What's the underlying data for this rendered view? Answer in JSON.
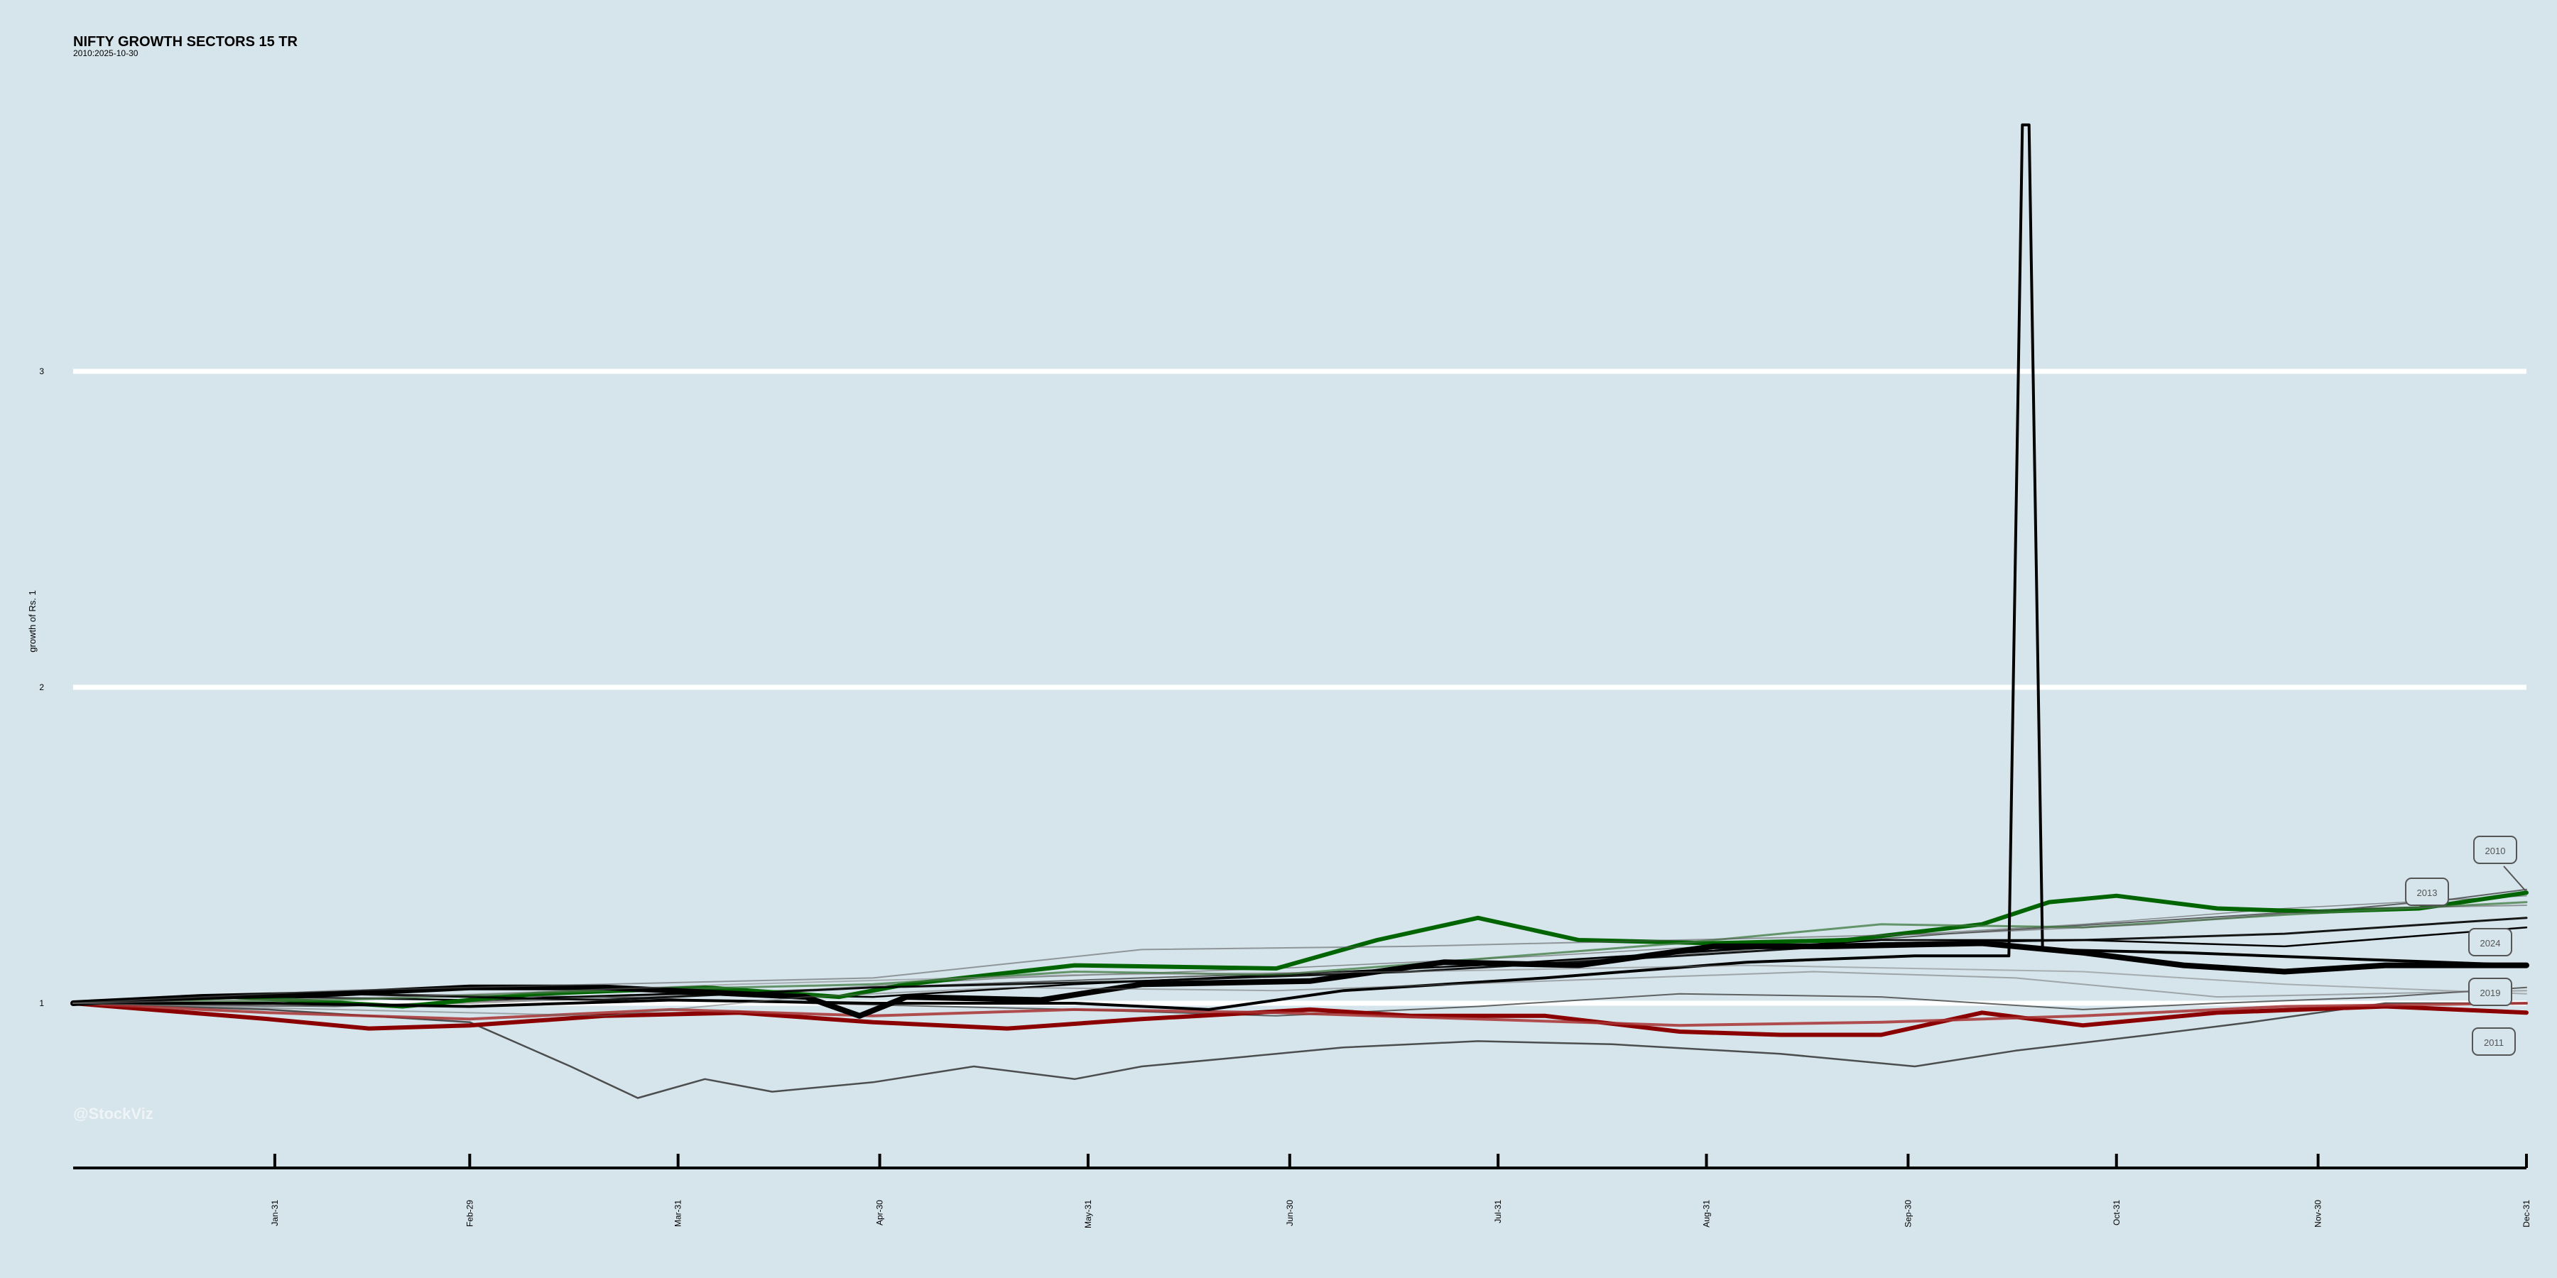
{
  "title": "NIFTY GROWTH SECTORS 15 TR",
  "subtitle": "2010:2025-10-30",
  "watermark": "@StockViz",
  "colors": {
    "background": "#d6e4eb",
    "gridline": "#ffffff",
    "green": "#006400",
    "red": "#8b0000",
    "black": "#000000"
  },
  "chart_data": {
    "type": "line",
    "title": "NIFTY GROWTH SECTORS 15 TR",
    "subtitle": "2010:2025-10-30",
    "ylabel": "growth of Rs. 1",
    "xlabel": "",
    "ylim": [
      0.5,
      3.8
    ],
    "y_ticks": [
      1,
      2,
      3
    ],
    "y_grid": true,
    "x_ticks": [
      "Jan-31",
      "Feb-29",
      "Mar-31",
      "Apr-30",
      "May-31",
      "Jun-30",
      "Jul-31",
      "Aug-31",
      "Sep-30",
      "Oct-31",
      "Nov-30",
      "Dec-31"
    ],
    "x_day_range": [
      1,
      366
    ],
    "annotations": [
      {
        "label": "2010",
        "y": 1.48
      },
      {
        "label": "2013",
        "y": 1.35
      },
      {
        "label": "2024",
        "y": 1.19
      },
      {
        "label": "2019",
        "y": 1.04
      },
      {
        "label": "2011",
        "y": 0.88
      }
    ],
    "series": [
      {
        "label": "2010",
        "color": "#404040",
        "width": 2,
        "opacity": 0.8,
        "points": [
          [
            1,
            1.0
          ],
          [
            40,
            1.03
          ],
          [
            80,
            1.02
          ],
          [
            120,
            1.05
          ],
          [
            160,
            1.08
          ],
          [
            190,
            1.1
          ],
          [
            220,
            1.13
          ],
          [
            250,
            1.17
          ],
          [
            280,
            1.22
          ],
          [
            310,
            1.26
          ],
          [
            340,
            1.3
          ],
          [
            355,
            1.33
          ],
          [
            366,
            1.36
          ]
        ]
      },
      {
        "label": "2013",
        "color": "#505050",
        "width": 1.5,
        "opacity": 0.6,
        "points": [
          [
            1,
            1.0
          ],
          [
            30,
            0.99
          ],
          [
            60,
            1.0
          ],
          [
            100,
            1.03
          ],
          [
            140,
            1.08
          ],
          [
            180,
            1.11
          ],
          [
            220,
            1.15
          ],
          [
            260,
            1.2
          ],
          [
            300,
            1.25
          ],
          [
            330,
            1.3
          ],
          [
            366,
            1.34
          ]
        ]
      },
      {
        "label": "2024",
        "color": "#000000",
        "width": 2.5,
        "opacity": 1,
        "points": [
          [
            1,
            1.0
          ],
          [
            30,
            1.02
          ],
          [
            60,
            1.01
          ],
          [
            90,
            1.03
          ],
          [
            120,
            1.02
          ],
          [
            150,
            1.06
          ],
          [
            180,
            1.09
          ],
          [
            210,
            1.12
          ],
          [
            240,
            1.16
          ],
          [
            270,
            1.2
          ],
          [
            300,
            1.2
          ],
          [
            330,
            1.18
          ],
          [
            366,
            1.24
          ]
        ]
      },
      {
        "label": "2019",
        "color": "#404040",
        "width": 2,
        "opacity": 0.8,
        "points": [
          [
            1,
            1.0
          ],
          [
            40,
            0.99
          ],
          [
            80,
            1.02
          ],
          [
            110,
            1.0
          ],
          [
            150,
            0.98
          ],
          [
            180,
            0.96
          ],
          [
            210,
            0.99
          ],
          [
            240,
            1.03
          ],
          [
            270,
            1.02
          ],
          [
            300,
            0.98
          ],
          [
            320,
            1.0
          ],
          [
            345,
            1.02
          ],
          [
            366,
            1.05
          ]
        ]
      },
      {
        "label": "2011",
        "color": "#333333",
        "width": 2.5,
        "opacity": 0.85,
        "points": [
          [
            1,
            1.0
          ],
          [
            30,
            0.98
          ],
          [
            60,
            0.94
          ],
          [
            75,
            0.8
          ],
          [
            85,
            0.7
          ],
          [
            95,
            0.76
          ],
          [
            105,
            0.72
          ],
          [
            120,
            0.75
          ],
          [
            135,
            0.8
          ],
          [
            150,
            0.76
          ],
          [
            160,
            0.8
          ],
          [
            175,
            0.83
          ],
          [
            190,
            0.86
          ],
          [
            210,
            0.88
          ],
          [
            230,
            0.87
          ],
          [
            255,
            0.84
          ],
          [
            275,
            0.8
          ],
          [
            290,
            0.85
          ],
          [
            310,
            0.9
          ],
          [
            325,
            0.94
          ],
          [
            345,
            1.0
          ],
          [
            366,
            1.0
          ]
        ]
      },
      {
        "label": "",
        "color": "#006400",
        "width": 6,
        "opacity": 1,
        "points": [
          [
            1,
            1.0
          ],
          [
            25,
            1.02
          ],
          [
            50,
            0.99
          ],
          [
            70,
            1.03
          ],
          [
            95,
            1.05
          ],
          [
            115,
            1.02
          ],
          [
            125,
            1.06
          ],
          [
            150,
            1.12
          ],
          [
            180,
            1.11
          ],
          [
            195,
            1.2
          ],
          [
            210,
            1.27
          ],
          [
            225,
            1.2
          ],
          [
            245,
            1.19
          ],
          [
            265,
            1.2
          ],
          [
            285,
            1.25
          ],
          [
            295,
            1.32
          ],
          [
            305,
            1.34
          ],
          [
            320,
            1.3
          ],
          [
            335,
            1.29
          ],
          [
            350,
            1.3
          ],
          [
            366,
            1.35
          ]
        ]
      },
      {
        "label": "",
        "color": "#3e7a3e",
        "width": 3,
        "opacity": 0.75,
        "points": [
          [
            1,
            1.0
          ],
          [
            40,
            1.01
          ],
          [
            80,
            1.04
          ],
          [
            120,
            1.06
          ],
          [
            150,
            1.1
          ],
          [
            180,
            1.09
          ],
          [
            210,
            1.14
          ],
          [
            240,
            1.19
          ],
          [
            270,
            1.25
          ],
          [
            300,
            1.24
          ],
          [
            330,
            1.28
          ],
          [
            366,
            1.32
          ]
        ]
      },
      {
        "label": "",
        "color": "#8b0000",
        "width": 6,
        "opacity": 1,
        "points": [
          [
            1,
            1.0
          ],
          [
            30,
            0.95
          ],
          [
            45,
            0.92
          ],
          [
            60,
            0.93
          ],
          [
            80,
            0.96
          ],
          [
            100,
            0.97
          ],
          [
            120,
            0.94
          ],
          [
            140,
            0.92
          ],
          [
            160,
            0.95
          ],
          [
            185,
            0.98
          ],
          [
            200,
            0.96
          ],
          [
            220,
            0.96
          ],
          [
            240,
            0.91
          ],
          [
            255,
            0.9
          ],
          [
            270,
            0.9
          ],
          [
            285,
            0.97
          ],
          [
            300,
            0.93
          ],
          [
            320,
            0.97
          ],
          [
            345,
            0.99
          ],
          [
            366,
            0.97
          ]
        ]
      },
      {
        "label": "",
        "color": "#a83232",
        "width": 4,
        "opacity": 0.85,
        "points": [
          [
            1,
            1.0
          ],
          [
            30,
            0.97
          ],
          [
            60,
            0.95
          ],
          [
            90,
            0.98
          ],
          [
            120,
            0.96
          ],
          [
            150,
            0.98
          ],
          [
            180,
            0.97
          ],
          [
            210,
            0.95
          ],
          [
            240,
            0.93
          ],
          [
            270,
            0.94
          ],
          [
            300,
            0.96
          ],
          [
            330,
            0.99
          ],
          [
            366,
            1.0
          ]
        ]
      },
      {
        "label": "",
        "color": "#000000",
        "width": 8,
        "opacity": 1,
        "points": [
          [
            1,
            1.0
          ],
          [
            20,
            1.02
          ],
          [
            40,
            1.03
          ],
          [
            60,
            1.05
          ],
          [
            80,
            1.05
          ],
          [
            100,
            1.03
          ],
          [
            110,
            1.02
          ],
          [
            118,
            0.96
          ],
          [
            125,
            1.02
          ],
          [
            145,
            1.01
          ],
          [
            160,
            1.06
          ],
          [
            185,
            1.07
          ],
          [
            205,
            1.13
          ],
          [
            225,
            1.12
          ],
          [
            245,
            1.18
          ],
          [
            262,
            1.18
          ],
          [
            285,
            1.19
          ],
          [
            300,
            1.16
          ],
          [
            315,
            1.12
          ],
          [
            330,
            1.1
          ],
          [
            345,
            1.12
          ],
          [
            366,
            1.12
          ]
        ]
      },
      {
        "label": "",
        "color": "#000000",
        "width": 4,
        "opacity": 1,
        "points": [
          [
            1,
            1.0
          ],
          [
            30,
            1.0
          ],
          [
            60,
            0.99
          ],
          [
            90,
            1.01
          ],
          [
            120,
            1.0
          ],
          [
            150,
            1.0
          ],
          [
            170,
            0.98
          ],
          [
            190,
            1.04
          ],
          [
            220,
            1.08
          ],
          [
            250,
            1.13
          ],
          [
            275,
            1.15
          ],
          [
            289,
            1.15
          ],
          [
            291,
            3.78
          ],
          [
            292,
            3.78
          ],
          [
            294,
            1.17
          ],
          [
            315,
            1.16
          ],
          [
            340,
            1.14
          ],
          [
            366,
            1.12
          ]
        ]
      },
      {
        "label": "",
        "color": "#000000",
        "width": 3,
        "opacity": 0.9,
        "points": [
          [
            1,
            1.0
          ],
          [
            40,
            1.03
          ],
          [
            80,
            1.01
          ],
          [
            120,
            1.05
          ],
          [
            160,
            1.07
          ],
          [
            200,
            1.1
          ],
          [
            240,
            1.15
          ],
          [
            270,
            1.19
          ],
          [
            300,
            1.2
          ],
          [
            330,
            1.22
          ],
          [
            366,
            1.27
          ]
        ]
      },
      {
        "label": "",
        "color": "#555555",
        "width": 2,
        "opacity": 0.55,
        "points": [
          [
            1,
            1.0
          ],
          [
            40,
            1.04
          ],
          [
            80,
            1.06
          ],
          [
            120,
            1.08
          ],
          [
            160,
            1.17
          ],
          [
            200,
            1.18
          ],
          [
            240,
            1.2
          ],
          [
            280,
            1.22
          ],
          [
            310,
            1.25
          ],
          [
            340,
            1.3
          ],
          [
            366,
            1.31
          ]
        ]
      },
      {
        "label": "",
        "color": "#777777",
        "width": 2,
        "opacity": 0.5,
        "points": [
          [
            1,
            1.0
          ],
          [
            50,
            1.02
          ],
          [
            100,
            1.06
          ],
          [
            150,
            1.09
          ],
          [
            200,
            1.1
          ],
          [
            250,
            1.12
          ],
          [
            300,
            1.1
          ],
          [
            330,
            1.06
          ],
          [
            366,
            1.03
          ]
        ]
      },
      {
        "label": "",
        "color": "#666666",
        "width": 2,
        "opacity": 0.5,
        "points": [
          [
            1,
            1.0
          ],
          [
            40,
            0.98
          ],
          [
            80,
            0.96
          ],
          [
            110,
            1.02
          ],
          [
            140,
            1.05
          ],
          [
            180,
            1.04
          ],
          [
            220,
            1.07
          ],
          [
            260,
            1.1
          ],
          [
            290,
            1.08
          ],
          [
            320,
            1.02
          ],
          [
            366,
            1.04
          ]
        ]
      }
    ]
  }
}
